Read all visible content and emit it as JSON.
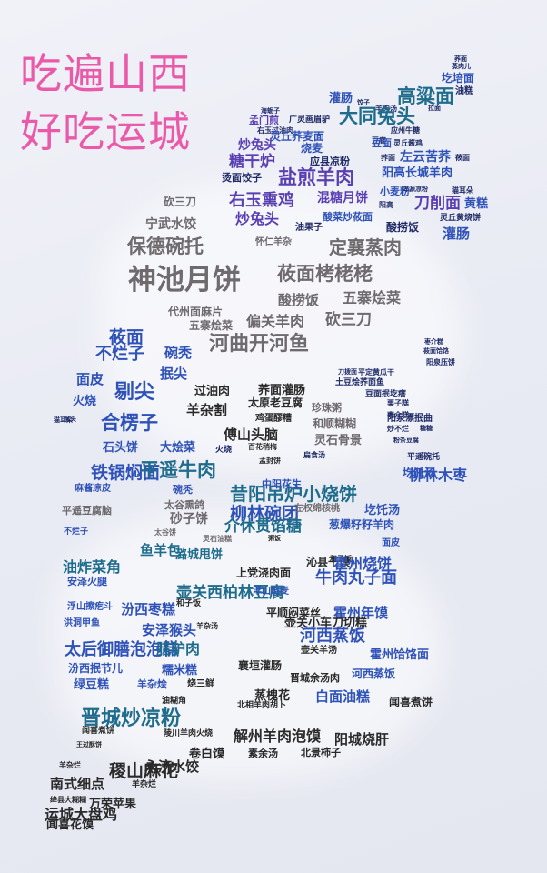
{
  "title": {
    "line1": "吃遍山西",
    "line2": "好吃运城",
    "color": "#ea5aa9"
  },
  "palette": {
    "navy": "#1e2a66",
    "blue": "#2f52b8",
    "purple": "#5a3fb3",
    "violet": "#7a4bd0",
    "teal": "#1f6c8c",
    "gray": "#6e6a6e",
    "dark": "#2a2a2a",
    "lightblue": "#4a7ad8"
  },
  "words": [
    {
      "text": "荞面",
      "size": 7,
      "color": "navy"
    },
    {
      "text": "蒸肉儿",
      "size": 7,
      "color": "navy"
    },
    {
      "text": "圪培面",
      "size": 12,
      "color": "blue"
    },
    {
      "text": "油糕",
      "size": 10,
      "color": "navy"
    },
    {
      "text": "灌肠",
      "size": 13,
      "color": "blue"
    },
    {
      "text": "高粱面",
      "size": 21,
      "color": "teal"
    },
    {
      "text": "饺子",
      "size": 7,
      "color": "navy"
    },
    {
      "text": "羊肉汤",
      "size": 8,
      "color": "navy"
    },
    {
      "text": "拉面",
      "size": 7,
      "color": "navy"
    },
    {
      "text": "海蛎子",
      "size": 7,
      "color": "navy"
    },
    {
      "text": "孟门煎",
      "size": 11,
      "color": "purple"
    },
    {
      "text": "广灵画眉驴",
      "size": 9,
      "color": "navy"
    },
    {
      "text": "大同兔头",
      "size": 21,
      "color": "teal"
    },
    {
      "text": "右玉过油肉",
      "size": 8,
      "color": "navy"
    },
    {
      "text": "灵丘荞麦面",
      "size": 12,
      "color": "blue"
    },
    {
      "text": "豆腐",
      "size": 8,
      "color": "navy"
    },
    {
      "text": "应州牛糖",
      "size": 8,
      "color": "navy"
    },
    {
      "text": "炒兔头",
      "size": 14,
      "color": "purple"
    },
    {
      "text": "烧麦",
      "size": 12,
      "color": "blue"
    },
    {
      "text": "豆面",
      "size": 11,
      "color": "blue"
    },
    {
      "text": "灵丘酱鸡",
      "size": 8,
      "color": "navy"
    },
    {
      "text": "糖干炉",
      "size": 17,
      "color": "purple"
    },
    {
      "text": "应县凉粉",
      "size": 11,
      "color": "navy"
    },
    {
      "text": "荞面",
      "size": 8,
      "color": "navy"
    },
    {
      "text": "左云苦荞",
      "size": 14,
      "color": "blue"
    },
    {
      "text": "莜面",
      "size": 8,
      "color": "navy"
    },
    {
      "text": "阳高长城羊肉",
      "size": 13,
      "color": "blue"
    },
    {
      "text": "烫面饺子",
      "size": 11,
      "color": "navy"
    },
    {
      "text": "盐煎羊肉",
      "size": 21,
      "color": "purple"
    },
    {
      "text": "小麦粉",
      "size": 11,
      "color": "blue"
    },
    {
      "text": "浑源凉粉",
      "size": 7,
      "color": "navy"
    },
    {
      "text": "猫耳朵",
      "size": 8,
      "color": "navy"
    },
    {
      "text": "阳高",
      "size": 8,
      "color": "navy"
    },
    {
      "text": "刀削面",
      "size": 17,
      "color": "purple"
    },
    {
      "text": "黄糕",
      "size": 13,
      "color": "blue"
    },
    {
      "text": "砍三刀",
      "size": 12,
      "color": "gray"
    },
    {
      "text": "右玉熏鸡",
      "size": 18,
      "color": "purple"
    },
    {
      "text": "混糖月饼",
      "size": 14,
      "color": "purple"
    },
    {
      "text": "酸菜炒莜面",
      "size": 11,
      "color": "blue"
    },
    {
      "text": "灵丘黄烧饼",
      "size": 9,
      "color": "navy"
    },
    {
      "text": "宁武水饺",
      "size": 14,
      "color": "gray"
    },
    {
      "text": "炒兔头",
      "size": 16,
      "color": "purple"
    },
    {
      "text": "油果子",
      "size": 10,
      "color": "navy"
    },
    {
      "text": "酸捞饭",
      "size": 12,
      "color": "navy"
    },
    {
      "text": "灌肠",
      "size": 15,
      "color": "blue"
    },
    {
      "text": "保德碗托",
      "size": 21,
      "color": "gray"
    },
    {
      "text": "怀仁羊杂",
      "size": 10,
      "color": "gray"
    },
    {
      "text": "定襄蒸肉",
      "size": 20,
      "color": "gray"
    },
    {
      "text": "神池月饼",
      "size": 31,
      "color": "gray"
    },
    {
      "text": "莜面栲栳栳",
      "size": 21,
      "color": "gray"
    },
    {
      "text": "酸捞饭",
      "size": 15,
      "color": "gray"
    },
    {
      "text": "五寨烩菜",
      "size": 16,
      "color": "gray"
    },
    {
      "text": "代州面麻片",
      "size": 12,
      "color": "gray"
    },
    {
      "text": "五寨烩菜",
      "size": 12,
      "color": "gray"
    },
    {
      "text": "偏关羊肉",
      "size": 16,
      "color": "gray"
    },
    {
      "text": "砍三刀",
      "size": 17,
      "color": "gray"
    },
    {
      "text": "河曲开河鱼",
      "size": 22,
      "color": "gray"
    },
    {
      "text": "枣介糕",
      "size": 7,
      "color": "navy"
    },
    {
      "text": "莜面饸饹",
      "size": 7,
      "color": "navy"
    },
    {
      "text": "阳泉压饼",
      "size": 8,
      "color": "navy"
    },
    {
      "text": "刀拨面",
      "size": 7,
      "color": "navy"
    },
    {
      "text": "平定黄瓜干",
      "size": 8,
      "color": "navy"
    },
    {
      "text": "莜面",
      "size": 19,
      "color": "blue"
    },
    {
      "text": "碗秃",
      "size": 15,
      "color": "blue"
    },
    {
      "text": "不烂子",
      "size": 18,
      "color": "blue"
    },
    {
      "text": "抿尖",
      "size": 15,
      "color": "blue"
    },
    {
      "text": "面皮",
      "size": 15,
      "color": "blue"
    },
    {
      "text": "过油肉",
      "size": 13,
      "color": "dark"
    },
    {
      "text": "荞面灌肠",
      "size": 13,
      "color": "dark"
    },
    {
      "text": "土豆烩荞面鱼",
      "size": 9,
      "color": "navy"
    },
    {
      "text": "火烧",
      "size": 13,
      "color": "blue"
    },
    {
      "text": "剔尖",
      "size": 22,
      "color": "blue"
    },
    {
      "text": "太原老豆腐",
      "size": 12,
      "color": "dark"
    },
    {
      "text": "豆面抿圪瘩",
      "size": 9,
      "color": "navy"
    },
    {
      "text": "猫耳朵",
      "size": 7,
      "color": "navy"
    },
    {
      "text": "羊杂割",
      "size": 15,
      "color": "dark"
    },
    {
      "text": "鸡蛋醪糟",
      "size": 10,
      "color": "dark"
    },
    {
      "text": "栗子糕",
      "size": 8,
      "color": "navy"
    },
    {
      "text": "枣介糕",
      "size": 8,
      "color": "navy"
    },
    {
      "text": "猴头",
      "size": 7,
      "color": "navy"
    },
    {
      "text": "合楞子",
      "size": 21,
      "color": "blue"
    },
    {
      "text": "珍珠粥",
      "size": 11,
      "color": "gray"
    },
    {
      "text": "阳泉漂抿曲",
      "size": 10,
      "color": "navy"
    },
    {
      "text": "傅山头脑",
      "size": 15,
      "color": "dark"
    },
    {
      "text": "和顺糊糊",
      "size": 12,
      "color": "gray"
    },
    {
      "text": "炒不烂",
      "size": 8,
      "color": "navy"
    },
    {
      "text": "糖糖",
      "size": 7,
      "color": "navy"
    },
    {
      "text": "粉条豆腐",
      "size": 7,
      "color": "navy"
    },
    {
      "text": "石头饼",
      "size": 13,
      "color": "blue"
    },
    {
      "text": "大烩菜",
      "size": 13,
      "color": "blue"
    },
    {
      "text": "火烧",
      "size": 9,
      "color": "navy"
    },
    {
      "text": "百花稍梅",
      "size": 8,
      "color": "dark"
    },
    {
      "text": "灵石骨景",
      "size": 13,
      "color": "gray"
    },
    {
      "text": "孟封饼",
      "size": 8,
      "color": "dark"
    },
    {
      "text": "平遥碗托",
      "size": 9,
      "color": "navy"
    },
    {
      "text": "圪饦汤",
      "size": 12,
      "color": "blue"
    },
    {
      "text": "铁锅焖面",
      "size": 19,
      "color": "blue"
    },
    {
      "text": "平遥牛肉",
      "size": 21,
      "color": "teal"
    },
    {
      "text": "扁食汤",
      "size": 8,
      "color": "navy"
    },
    {
      "text": "柳林木枣",
      "size": 16,
      "color": "blue"
    },
    {
      "text": "麻酱凉皮",
      "size": 10,
      "color": "blue"
    },
    {
      "text": "碗秃",
      "size": 11,
      "color": "blue"
    },
    {
      "text": "昔阳吊炉小烧饼",
      "size": 20,
      "color": "teal"
    },
    {
      "text": "中阳花生",
      "size": 11,
      "color": "blue"
    },
    {
      "text": "太谷熏鸽",
      "size": 11,
      "color": "gray"
    },
    {
      "text": "柳林碗团",
      "size": 19,
      "color": "blue"
    },
    {
      "text": "平遥豆腐脑",
      "size": 11,
      "color": "gray"
    },
    {
      "text": "左权绵核桃",
      "size": 10,
      "color": "gray"
    },
    {
      "text": "圪饦汤",
      "size": 13,
      "color": "blue"
    },
    {
      "text": "砂子饼",
      "size": 14,
      "color": "gray"
    },
    {
      "text": "介休贯馅糖",
      "size": 17,
      "color": "teal"
    },
    {
      "text": "葱爆籽籽羊肉",
      "size": 12,
      "color": "blue"
    },
    {
      "text": "不烂子",
      "size": 9,
      "color": "blue"
    },
    {
      "text": "太谷饼",
      "size": 8,
      "color": "gray"
    },
    {
      "text": "灵石油糕",
      "size": 8,
      "color": "gray"
    },
    {
      "text": "面皮",
      "size": 10,
      "color": "blue"
    },
    {
      "text": "鱼羊包",
      "size": 15,
      "color": "teal"
    },
    {
      "text": "潞城甩饼",
      "size": 13,
      "color": "teal"
    },
    {
      "text": "粥饭",
      "size": 7,
      "color": "dark"
    },
    {
      "text": "和子饭",
      "size": 8,
      "color": "dark"
    },
    {
      "text": "沁县干馍",
      "size": 12,
      "color": "dark"
    },
    {
      "text": "霍州烧饼",
      "size": 16,
      "color": "blue"
    },
    {
      "text": "油炸菜角",
      "size": 16,
      "color": "teal"
    },
    {
      "text": "上党浇肉面",
      "size": 12,
      "color": "dark"
    },
    {
      "text": "牛肉丸子面",
      "size": 18,
      "color": "blue"
    },
    {
      "text": "安泽火腿",
      "size": 11,
      "color": "blue"
    },
    {
      "text": "壶关西柏林豆腐",
      "size": 17,
      "color": "teal"
    },
    {
      "text": "浮山烧麦",
      "size": 10,
      "color": "blue"
    },
    {
      "text": "浮山擦疙斗",
      "size": 10,
      "color": "blue"
    },
    {
      "text": "汾西枣糕",
      "size": 15,
      "color": "blue"
    },
    {
      "text": "和子饭",
      "size": 9,
      "color": "dark"
    },
    {
      "text": "平顺闷菜丝",
      "size": 12,
      "color": "dark"
    },
    {
      "text": "霍州年馍",
      "size": 15,
      "color": "blue"
    },
    {
      "text": "洪洞甲鱼",
      "size": 10,
      "color": "blue"
    },
    {
      "text": "安泽猴头",
      "size": 15,
      "color": "blue"
    },
    {
      "text": "羊杂汤",
      "size": 8,
      "color": "dark"
    },
    {
      "text": "壶关小车刀切糕",
      "size": 13,
      "color": "dark"
    },
    {
      "text": "河西蒸饭",
      "size": 18,
      "color": "blue"
    },
    {
      "text": "太后御膳泡泡糕",
      "size": 18,
      "color": "blue"
    },
    {
      "text": "腊驴肉",
      "size": 16,
      "color": "teal"
    },
    {
      "text": "壶关羊汤",
      "size": 10,
      "color": "dark"
    },
    {
      "text": "霍州饸饹面",
      "size": 13,
      "color": "blue"
    },
    {
      "text": "汾西抿节儿",
      "size": 12,
      "color": "blue"
    },
    {
      "text": "糯米糕",
      "size": 13,
      "color": "blue"
    },
    {
      "text": "襄垣灌肠",
      "size": 12,
      "color": "dark"
    },
    {
      "text": "河西蒸饭",
      "size": 12,
      "color": "blue"
    },
    {
      "text": "绿豆糕",
      "size": 13,
      "color": "blue"
    },
    {
      "text": "羊杂烩",
      "size": 11,
      "color": "blue"
    },
    {
      "text": "烧三鲜",
      "size": 10,
      "color": "dark"
    },
    {
      "text": "晋城余汤肉",
      "size": 11,
      "color": "dark"
    },
    {
      "text": "蒸槐花",
      "size": 13,
      "color": "dark"
    },
    {
      "text": "白面油糕",
      "size": 15,
      "color": "blue"
    },
    {
      "text": "油糊角",
      "size": 9,
      "color": "dark"
    },
    {
      "text": "闻喜煮饼",
      "size": 12,
      "color": "dark"
    },
    {
      "text": "晋城炒凉粉",
      "size": 22,
      "color": "teal"
    },
    {
      "text": "北相羊肉胡卜",
      "size": 9,
      "color": "dark"
    },
    {
      "text": "闻喜煮饼",
      "size": 9,
      "color": "dark"
    },
    {
      "text": "陵川羊肉火烧",
      "size": 9,
      "color": "dark"
    },
    {
      "text": "阳城烧肝",
      "size": 15,
      "color": "dark"
    },
    {
      "text": "解州羊肉泡馍",
      "size": 16,
      "color": "dark"
    },
    {
      "text": "王过酥饼",
      "size": 7,
      "color": "dark"
    },
    {
      "text": "卷白馍",
      "size": 13,
      "color": "dark"
    },
    {
      "text": "素余汤",
      "size": 11,
      "color": "dark"
    },
    {
      "text": "北景柿子",
      "size": 11,
      "color": "dark"
    },
    {
      "text": "羊杂烂",
      "size": 8,
      "color": "dark"
    },
    {
      "text": "稷山麻花",
      "size": 19,
      "color": "dark"
    },
    {
      "text": "永济水饺",
      "size": 15,
      "color": "dark"
    },
    {
      "text": "南式细点",
      "size": 15,
      "color": "dark"
    },
    {
      "text": "羊杂烂",
      "size": 9,
      "color": "dark"
    },
    {
      "text": "绛县大糊糊",
      "size": 8,
      "color": "dark"
    },
    {
      "text": "运城大盘鸡",
      "size": 16,
      "color": "dark"
    },
    {
      "text": "万荣苹果",
      "size": 13,
      "color": "dark"
    },
    {
      "text": "闻喜花馍",
      "size": 13,
      "color": "dark"
    }
  ]
}
